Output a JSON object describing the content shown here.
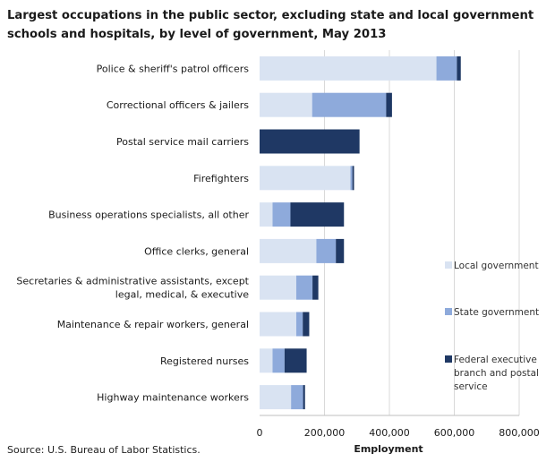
{
  "chart_data": {
    "type": "bar",
    "orientation": "horizontal",
    "stacked": true,
    "title": "Largest occupations in the public sector, excluding state and local government schools and hospitals, by level of government, May 2013",
    "source": "Source: U.S. Bureau of Labor Statistics.",
    "xlabel": "Employment",
    "ylabel": "",
    "xlim": [
      0,
      800000
    ],
    "xticks": [
      0,
      200000,
      400000,
      600000,
      800000
    ],
    "xtick_labels": [
      "0",
      "200,000",
      "400,000",
      "600,000",
      "800,000"
    ],
    "grid": "vertical",
    "legend_position": "right",
    "categories": [
      [
        "Police & sheriff's patrol officers"
      ],
      [
        "Correctional officers & jailers"
      ],
      [
        "Postal service mail carriers"
      ],
      [
        "Firefighters"
      ],
      [
        "Business operations specialists, all other"
      ],
      [
        "Office clerks, general"
      ],
      [
        "Secretaries & administrative assistants, except",
        "legal, medical, & executive"
      ],
      [
        "Maintenance & repair workers, general"
      ],
      [
        "Registered nurses"
      ],
      [
        "Highway maintenance workers"
      ]
    ],
    "series": [
      {
        "name": "Local government",
        "color": "#d9e3f2",
        "values": [
          545000,
          162000,
          0,
          280000,
          40000,
          175000,
          113000,
          113000,
          40000,
          97000
        ]
      },
      {
        "name": "State government",
        "color": "#8eaadb",
        "values": [
          63000,
          228000,
          0,
          6000,
          55000,
          60000,
          50000,
          20000,
          37000,
          37000
        ]
      },
      {
        "name": "Federal executive branch and postal service",
        "color": "#1f3864",
        "legend_lines": [
          "Federal executive",
          "branch and postal",
          "service"
        ],
        "values": [
          12000,
          18000,
          308000,
          5000,
          165000,
          25000,
          18000,
          20000,
          68000,
          6000
        ]
      }
    ]
  }
}
